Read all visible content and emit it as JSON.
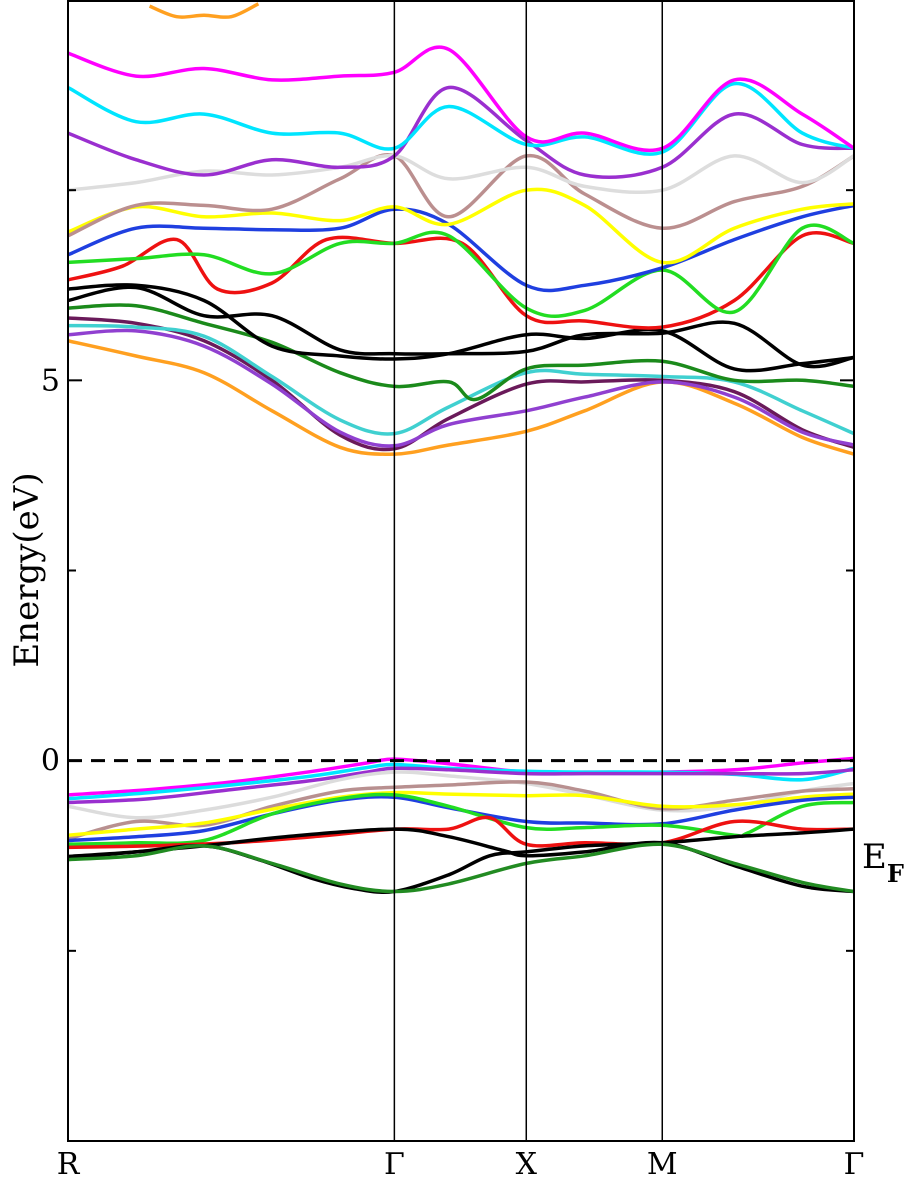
{
  "chart_data": {
    "type": "line",
    "title": "",
    "ylabel": "Energy(eV)",
    "xlabel": "",
    "x_ticks": [
      {
        "label": "R",
        "x": 0
      },
      {
        "label": "Γ",
        "x": 2.4
      },
      {
        "label": "X",
        "x": 3.37
      },
      {
        "label": "M",
        "x": 4.37
      },
      {
        "label": "Γ",
        "x": 5.78
      }
    ],
    "xlim": [
      0,
      5.78
    ],
    "ylim": [
      -5.0,
      10.0
    ],
    "y_ticks": [
      {
        "label": "5",
        "y": 5
      },
      {
        "label": "0",
        "y": 0
      }
    ],
    "y_minor_ticks": [
      2.5,
      7.5,
      -2.5
    ],
    "fermi_level": {
      "y": 0,
      "label": "E",
      "sub": "F",
      "style": "dashed"
    },
    "grid": false,
    "series": [
      {
        "color": "#ff00ff",
        "x": [
          0,
          0.6,
          1.2,
          1.8,
          2.2,
          2.4,
          2.8,
          3.37,
          3.8,
          4.37,
          4.9,
          5.4,
          5.78
        ],
        "y": [
          -0.45,
          -0.38,
          -0.28,
          -0.14,
          -0.03,
          0.02,
          -0.04,
          -0.15,
          -0.15,
          -0.15,
          -0.12,
          -0.03,
          0.03
        ]
      },
      {
        "color": "#00e5ff",
        "x": [
          0,
          0.6,
          1.2,
          1.8,
          2.2,
          2.4,
          2.8,
          3.37,
          3.8,
          4.37,
          4.9,
          5.4,
          5.78
        ],
        "y": [
          -0.5,
          -0.42,
          -0.32,
          -0.2,
          -0.09,
          -0.05,
          -0.1,
          -0.14,
          -0.15,
          -0.15,
          -0.18,
          -0.25,
          -0.1
        ]
      },
      {
        "color": "#9a2fcf",
        "x": [
          0,
          0.6,
          1.2,
          1.8,
          2.2,
          2.4,
          2.8,
          3.37,
          3.8,
          4.37,
          4.9,
          5.4,
          5.78
        ],
        "y": [
          -0.55,
          -0.5,
          -0.38,
          -0.26,
          -0.15,
          -0.1,
          -0.12,
          -0.17,
          -0.17,
          -0.17,
          -0.17,
          -0.17,
          -0.12
        ]
      },
      {
        "color": "#dcdcdc",
        "x": [
          0,
          0.5,
          1.0,
          1.5,
          2.0,
          2.4,
          2.8,
          3.37,
          3.8,
          4.37,
          4.9,
          5.4,
          5.78
        ],
        "y": [
          -0.6,
          -0.75,
          -0.65,
          -0.48,
          -0.25,
          -0.15,
          -0.2,
          -0.3,
          -0.45,
          -0.65,
          -0.6,
          -0.4,
          -0.3
        ]
      },
      {
        "color": "#b89090",
        "x": [
          0,
          0.5,
          1.0,
          1.5,
          2.0,
          2.4,
          2.8,
          3.37,
          3.8,
          4.37,
          4.9,
          5.4,
          5.78
        ],
        "y": [
          -1.03,
          -0.8,
          -0.85,
          -0.6,
          -0.4,
          -0.35,
          -0.32,
          -0.28,
          -0.4,
          -0.63,
          -0.52,
          -0.4,
          -0.37
        ]
      },
      {
        "color": "#ffff00",
        "x": [
          0,
          0.5,
          1.0,
          1.5,
          2.0,
          2.4,
          2.8,
          3.37,
          3.8,
          4.37,
          4.9,
          5.4,
          5.78
        ],
        "y": [
          -0.98,
          -0.9,
          -0.82,
          -0.64,
          -0.48,
          -0.42,
          -0.44,
          -0.46,
          -0.46,
          -0.6,
          -0.58,
          -0.48,
          -0.44
        ]
      },
      {
        "color": "#1f3fe0",
        "x": [
          0,
          0.5,
          1.0,
          1.5,
          2.0,
          2.4,
          2.8,
          3.37,
          3.8,
          4.37,
          4.9,
          5.4,
          5.78
        ],
        "y": [
          -1.05,
          -1.0,
          -0.92,
          -0.7,
          -0.52,
          -0.48,
          -0.62,
          -0.8,
          -0.82,
          -0.83,
          -0.65,
          -0.52,
          -0.48
        ]
      },
      {
        "color": "#22dd22",
        "x": [
          0,
          0.5,
          1.0,
          1.5,
          2.0,
          2.4,
          2.8,
          3.37,
          3.8,
          4.37,
          4.9,
          5.0,
          5.4,
          5.78
        ],
        "y": [
          -1.1,
          -1.08,
          -1.05,
          -0.7,
          -0.5,
          -0.45,
          -0.6,
          -0.88,
          -0.88,
          -0.85,
          -0.98,
          -0.95,
          -0.6,
          -0.55
        ]
      },
      {
        "color": "#ee1111",
        "x": [
          0,
          0.6,
          1.2,
          1.8,
          2.4,
          2.8,
          3.1,
          3.37,
          3.8,
          4.37,
          4.9,
          5.4,
          5.78
        ],
        "y": [
          -1.14,
          -1.12,
          -1.08,
          -1.0,
          -0.9,
          -0.9,
          -0.75,
          -1.1,
          -1.08,
          -1.08,
          -0.8,
          -0.9,
          -0.9
        ]
      },
      {
        "color": "#000000",
        "x": [
          0,
          0.5,
          1.0,
          1.4,
          1.8,
          2.1,
          2.4,
          2.8,
          3.1,
          3.37,
          3.8,
          4.37,
          4.9,
          5.4,
          5.78
        ],
        "y": [
          -1.26,
          -1.2,
          -1.12,
          -1.3,
          -1.55,
          -1.68,
          -1.72,
          -1.5,
          -1.25,
          -1.2,
          -1.12,
          -1.08,
          -1.0,
          -0.95,
          -0.9
        ]
      },
      {
        "color": "#000000",
        "x": [
          0,
          0.5,
          1.0,
          1.6,
          2.4,
          2.8,
          3.2,
          3.37,
          3.8,
          4.37,
          4.9,
          5.4,
          5.78
        ],
        "y": [
          -1.28,
          -1.2,
          -1.12,
          -1.0,
          -0.9,
          -1.0,
          -1.18,
          -1.25,
          -1.2,
          -1.08,
          -1.38,
          -1.65,
          -1.72
        ]
      },
      {
        "color": "#228b22",
        "x": [
          0,
          0.5,
          1.0,
          1.5,
          2.0,
          2.4,
          2.8,
          3.37,
          3.8,
          4.37,
          4.9,
          5.4,
          5.78
        ],
        "y": [
          -1.3,
          -1.25,
          -1.12,
          -1.35,
          -1.62,
          -1.72,
          -1.62,
          -1.35,
          -1.25,
          -1.1,
          -1.35,
          -1.6,
          -1.72
        ]
      },
      {
        "color": "#ffa020",
        "x": [
          0,
          0.5,
          1.0,
          1.5,
          2.0,
          2.4,
          2.8,
          3.37,
          3.8,
          4.37,
          4.9,
          5.4,
          5.78
        ],
        "y": [
          5.52,
          5.32,
          5.1,
          4.6,
          4.12,
          4.03,
          4.15,
          4.33,
          4.6,
          4.98,
          4.7,
          4.25,
          4.03
        ]
      },
      {
        "color": "#6a1a5a",
        "x": [
          0,
          0.5,
          1.0,
          1.5,
          2.0,
          2.4,
          2.8,
          3.37,
          3.8,
          4.37,
          4.9,
          5.4,
          5.78
        ],
        "y": [
          5.82,
          5.75,
          5.52,
          5.0,
          4.28,
          4.1,
          4.5,
          4.95,
          4.98,
          5.0,
          4.85,
          4.35,
          4.12
        ]
      },
      {
        "color": "#9040d0",
        "x": [
          0,
          0.5,
          1.0,
          1.5,
          2.0,
          2.4,
          2.8,
          3.37,
          3.8,
          4.37,
          4.9,
          5.4,
          5.78
        ],
        "y": [
          5.6,
          5.65,
          5.45,
          4.95,
          4.32,
          4.14,
          4.42,
          4.6,
          4.78,
          4.98,
          4.78,
          4.32,
          4.15
        ]
      },
      {
        "color": "#40d0d0",
        "x": [
          0,
          0.5,
          1.0,
          1.5,
          2.0,
          2.4,
          2.8,
          3.37,
          3.8,
          4.37,
          4.9,
          5.4,
          5.78
        ],
        "y": [
          5.72,
          5.7,
          5.58,
          5.05,
          4.48,
          4.3,
          4.65,
          5.1,
          5.08,
          5.05,
          4.98,
          4.6,
          4.3
        ]
      },
      {
        "color": "#1b8a1b",
        "x": [
          0,
          0.5,
          1.0,
          1.5,
          2.0,
          2.4,
          2.8,
          3.0,
          3.37,
          3.8,
          4.37,
          4.9,
          5.4,
          5.78
        ],
        "y": [
          5.95,
          5.98,
          5.75,
          5.5,
          5.1,
          4.92,
          4.98,
          4.75,
          5.15,
          5.2,
          5.25,
          5.0,
          5.0,
          4.92
        ]
      },
      {
        "color": "#000000",
        "x": [
          0,
          0.5,
          1.0,
          1.5,
          2.0,
          2.4,
          2.8,
          3.37,
          3.8,
          4.37,
          4.9,
          5.4,
          5.78
        ],
        "y": [
          6.2,
          6.25,
          6.05,
          5.45,
          5.32,
          5.28,
          5.35,
          5.6,
          5.55,
          5.65,
          5.15,
          5.22,
          5.3
        ]
      },
      {
        "color": "#000000",
        "x": [
          0,
          0.5,
          1.0,
          1.5,
          2.0,
          2.4,
          2.8,
          3.37,
          3.8,
          4.37,
          4.9,
          5.4,
          5.78
        ],
        "y": [
          6.05,
          6.22,
          5.85,
          5.85,
          5.4,
          5.35,
          5.35,
          5.38,
          5.6,
          5.62,
          5.75,
          5.2,
          5.3
        ]
      },
      {
        "color": "#ee1111",
        "x": [
          0,
          0.4,
          0.8,
          1.1,
          1.5,
          1.9,
          2.4,
          2.9,
          3.37,
          3.8,
          4.37,
          4.9,
          5.4,
          5.78
        ],
        "y": [
          6.32,
          6.5,
          6.85,
          6.2,
          6.28,
          6.85,
          6.8,
          6.8,
          5.85,
          5.78,
          5.7,
          6.05,
          6.9,
          6.8
        ]
      },
      {
        "color": "#22dd22",
        "x": [
          0,
          0.5,
          1.0,
          1.5,
          2.0,
          2.4,
          2.8,
          3.37,
          3.8,
          4.37,
          4.9,
          5.4,
          5.78
        ],
        "y": [
          6.55,
          6.6,
          6.65,
          6.4,
          6.8,
          6.8,
          6.9,
          5.95,
          5.92,
          6.45,
          5.9,
          7.0,
          6.8
        ]
      },
      {
        "color": "#1f3fe0",
        "x": [
          0,
          0.5,
          1.0,
          1.5,
          2.0,
          2.4,
          2.8,
          3.37,
          3.8,
          4.37,
          4.9,
          5.4,
          5.78
        ],
        "y": [
          6.65,
          7.0,
          7.0,
          6.98,
          7.0,
          7.25,
          7.05,
          6.25,
          6.25,
          6.48,
          6.85,
          7.15,
          7.3
        ]
      },
      {
        "color": "#ffff00",
        "x": [
          0,
          0.5,
          1.0,
          1.5,
          2.0,
          2.4,
          2.8,
          3.37,
          3.8,
          4.37,
          4.9,
          5.4,
          5.78
        ],
        "y": [
          6.95,
          7.28,
          7.15,
          7.2,
          7.1,
          7.28,
          7.05,
          7.5,
          7.3,
          6.55,
          7.0,
          7.25,
          7.32
        ]
      },
      {
        "color": "#bb8f8f",
        "x": [
          0,
          0.5,
          1.0,
          1.5,
          2.0,
          2.4,
          2.8,
          3.37,
          3.8,
          4.37,
          4.9,
          5.4,
          5.78
        ],
        "y": [
          6.9,
          7.3,
          7.3,
          7.25,
          7.65,
          7.95,
          7.15,
          7.95,
          7.45,
          7.0,
          7.35,
          7.55,
          7.95
        ]
      },
      {
        "color": "#dddddd",
        "x": [
          0,
          0.5,
          1.0,
          1.5,
          2.0,
          2.4,
          2.8,
          3.37,
          3.8,
          4.37,
          4.9,
          5.4,
          5.78
        ],
        "y": [
          7.5,
          7.6,
          7.75,
          7.7,
          7.8,
          7.95,
          7.65,
          7.8,
          7.55,
          7.5,
          7.95,
          7.6,
          7.95
        ]
      },
      {
        "color": "#9a2fcf",
        "x": [
          0,
          0.5,
          1.0,
          1.5,
          2.0,
          2.4,
          2.8,
          3.37,
          3.8,
          4.37,
          4.9,
          5.4,
          5.78
        ],
        "y": [
          8.25,
          7.9,
          7.7,
          7.9,
          7.8,
          7.95,
          8.85,
          8.15,
          7.7,
          7.8,
          8.5,
          8.1,
          8.05
        ]
      },
      {
        "color": "#00e5ff",
        "x": [
          0,
          0.5,
          1.0,
          1.5,
          2.0,
          2.4,
          2.8,
          3.37,
          3.8,
          4.37,
          4.9,
          5.4,
          5.78
        ],
        "y": [
          8.85,
          8.4,
          8.5,
          8.25,
          8.25,
          8.05,
          8.6,
          8.1,
          8.2,
          8.0,
          8.9,
          8.25,
          8.05
        ]
      },
      {
        "color": "#ff00ff",
        "x": [
          0,
          0.5,
          1.0,
          1.5,
          2.0,
          2.4,
          2.8,
          3.37,
          3.8,
          4.37,
          4.9,
          5.4,
          5.78
        ],
        "y": [
          9.3,
          9.0,
          9.1,
          8.95,
          9.0,
          9.05,
          9.35,
          8.2,
          8.25,
          8.05,
          8.95,
          8.5,
          8.05
        ]
      },
      {
        "color": "#ffa020",
        "x": [
          0.6,
          0.8,
          1.0,
          1.2,
          1.4
        ],
        "y": [
          9.92,
          9.78,
          9.8,
          9.78,
          9.95
        ]
      }
    ]
  }
}
